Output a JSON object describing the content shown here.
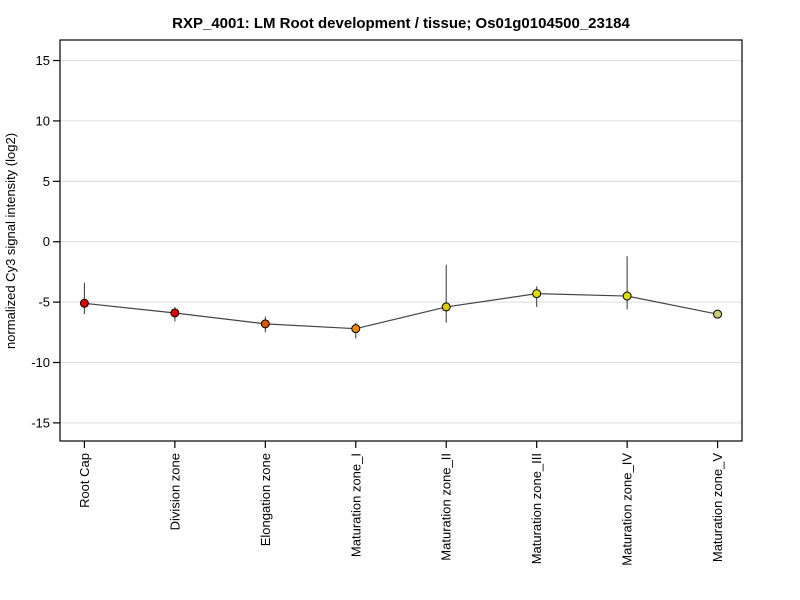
{
  "chart_data": {
    "type": "line",
    "title": "RXP_4001: LM Root development / tissue; Os01g0104500_23184",
    "xlabel": "",
    "ylabel": "normalized Cy3 signal intensity (log2)",
    "categories": [
      "Root Cap",
      "Division zone",
      "Elongation zone",
      "Maturation zone_I",
      "Maturation zone_II",
      "Maturation zone_III",
      "Maturation zone_IV",
      "Maturation zone_V"
    ],
    "series": [
      {
        "name": "mean normalized Cy3 signal intensity (log2)",
        "values": [
          -5.1,
          -5.9,
          -6.8,
          -7.2,
          -5.4,
          -4.3,
          -4.5,
          -6.0
        ]
      }
    ],
    "error_low": [
      -6.0,
      -6.6,
      -7.5,
      -8.0,
      -6.7,
      -5.4,
      -5.6,
      null
    ],
    "error_high": [
      -3.4,
      -5.4,
      -6.2,
      -6.7,
      -1.9,
      -3.7,
      -1.2,
      null
    ],
    "point_colors": [
      "#dd0000",
      "#dd0000",
      "#dd5500",
      "#ee8800",
      "#ddcc00",
      "#dddd00",
      "#dddd00",
      "#cccc77"
    ],
    "yticks": [
      15,
      10,
      5,
      0,
      -5,
      -10,
      -15
    ],
    "ylim": [
      -16.5,
      16.7
    ],
    "grid": "horizontal-only",
    "legend": false
  },
  "colors": {
    "grid": "#dcdcdc",
    "axis": "#000000",
    "series_line": "#444444",
    "error_bar": "#444444",
    "point_stroke": "#000000",
    "background": "#ffffff"
  }
}
